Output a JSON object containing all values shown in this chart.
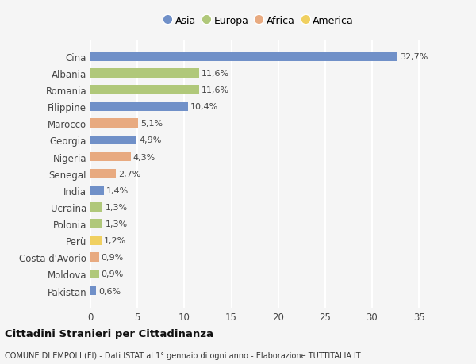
{
  "countries": [
    "Cina",
    "Albania",
    "Romania",
    "Filippine",
    "Marocco",
    "Georgia",
    "Nigeria",
    "Senegal",
    "India",
    "Ucraina",
    "Polonia",
    "Perù",
    "Costa d'Avorio",
    "Moldova",
    "Pakistan"
  ],
  "values": [
    32.7,
    11.6,
    11.6,
    10.4,
    5.1,
    4.9,
    4.3,
    2.7,
    1.4,
    1.3,
    1.3,
    1.2,
    0.9,
    0.9,
    0.6
  ],
  "labels": [
    "32,7%",
    "11,6%",
    "11,6%",
    "10,4%",
    "5,1%",
    "4,9%",
    "4,3%",
    "2,7%",
    "1,4%",
    "1,3%",
    "1,3%",
    "1,2%",
    "0,9%",
    "0,9%",
    "0,6%"
  ],
  "continents": [
    "Asia",
    "Europa",
    "Europa",
    "Asia",
    "Africa",
    "Asia",
    "Africa",
    "Africa",
    "Asia",
    "Europa",
    "Europa",
    "America",
    "Africa",
    "Europa",
    "Asia"
  ],
  "colors": {
    "Asia": "#7090c8",
    "Europa": "#b0c87a",
    "Africa": "#e8aa80",
    "America": "#f0d060"
  },
  "legend_order": [
    "Asia",
    "Europa",
    "Africa",
    "America"
  ],
  "xlim": [
    0,
    36
  ],
  "xticks": [
    0,
    5,
    10,
    15,
    20,
    25,
    30,
    35
  ],
  "title": "Cittadini Stranieri per Cittadinanza",
  "subtitle": "COMUNE DI EMPOLI (FI) - Dati ISTAT al 1° gennaio di ogni anno - Elaborazione TUTTITALIA.IT",
  "bg_color": "#f5f5f5",
  "grid_color": "#ffffff",
  "bar_height": 0.55
}
